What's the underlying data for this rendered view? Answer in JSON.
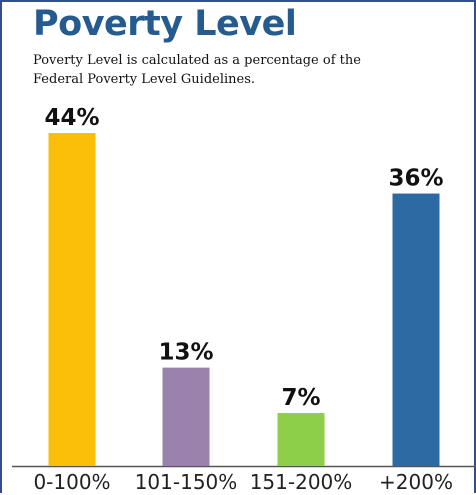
{
  "chart_data": {
    "type": "bar",
    "title": "Poverty Level",
    "subtitle_lines": [
      "Poverty Level is calculated as a percentage of the",
      "Federal  Poverty Level Guidelines."
    ],
    "categories": [
      "0-100%",
      "101-150%",
      "151-200%",
      "+200%"
    ],
    "values": [
      44,
      13,
      7,
      36
    ],
    "value_labels": [
      "44%",
      "13%",
      "7%",
      "36%"
    ],
    "colors": [
      "#fbbf0a",
      "#9a82ad",
      "#8ecf4a",
      "#2d6aa3"
    ],
    "ylim": [
      0,
      44
    ],
    "grid": false,
    "legend": "none"
  }
}
